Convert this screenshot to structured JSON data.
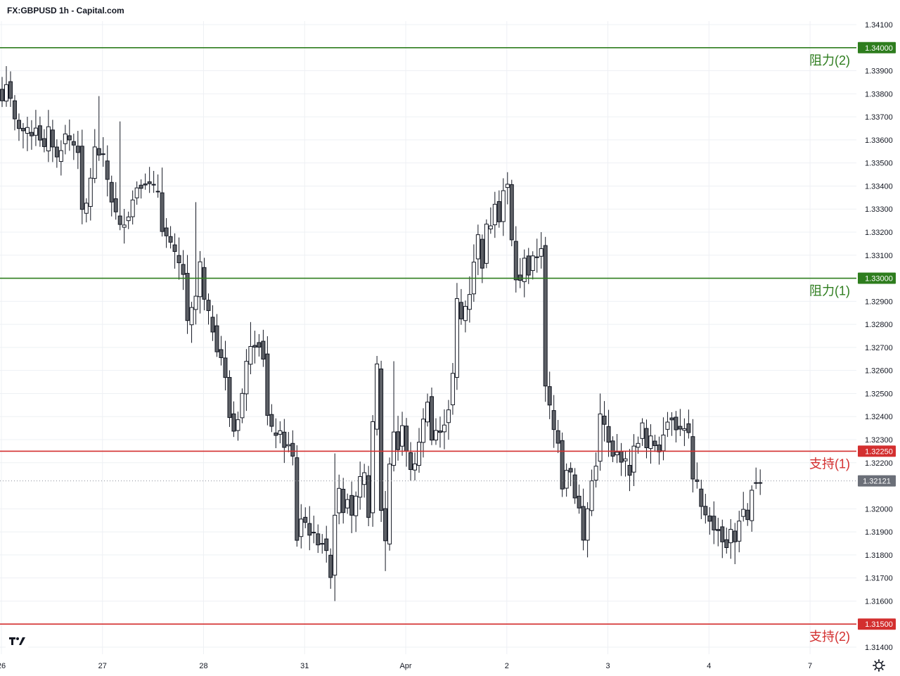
{
  "header": {
    "title": "FX:GBPUSD 1h - Capital.com"
  },
  "colors": {
    "resistance": "#2e7d1e",
    "support": "#d32f2f",
    "candle_up_fill": "#ffffff",
    "candle_down_fill": "#5d6066",
    "candle_stroke": "#131722",
    "grid": "#eef0f4",
    "current_tag": "#6b6f78"
  },
  "chart_data": {
    "type": "candlestick",
    "title": "FX:GBPUSD 1h - Capital.com",
    "ylim": [
      1.3135,
      1.3413
    ],
    "y_ticks": [
      "1.34100",
      "1.33900",
      "1.33800",
      "1.33700",
      "1.33600",
      "1.33500",
      "1.33400",
      "1.33300",
      "1.33200",
      "1.33100",
      "1.32900",
      "1.32800",
      "1.32700",
      "1.32600",
      "1.32500",
      "1.32400",
      "1.32300",
      "1.32200",
      "1.32000",
      "1.31900",
      "1.31800",
      "1.31700",
      "1.31600",
      "1.31400"
    ],
    "x_ticks": [
      {
        "label": "26",
        "index": 0
      },
      {
        "label": "27",
        "index": 24
      },
      {
        "label": "28",
        "index": 48
      },
      {
        "label": "31",
        "index": 72
      },
      {
        "label": "Apr",
        "index": 96
      },
      {
        "label": "2",
        "index": 120
      },
      {
        "label": "3",
        "index": 144
      },
      {
        "label": "4",
        "index": 168
      },
      {
        "label": "7",
        "index": 192
      }
    ],
    "grid": true,
    "levels": [
      {
        "name": "阻力(2)",
        "value": 1.34,
        "tag": "1.34000",
        "kind": "resistance"
      },
      {
        "name": "阻力(1)",
        "value": 1.33,
        "tag": "1.33000",
        "kind": "resistance"
      },
      {
        "name": "支持(1)",
        "value": 1.3225,
        "tag": "1.32250",
        "kind": "support"
      },
      {
        "name": "支持(2)",
        "value": 1.315,
        "tag": "1.31500",
        "kind": "support"
      }
    ],
    "current_price": {
      "value": 1.32121,
      "tag": "1.32121"
    },
    "close_anchors": [
      [
        0,
        1.3377
      ],
      [
        1,
        1.3385
      ],
      [
        3,
        1.3368
      ],
      [
        5,
        1.3364
      ],
      [
        7,
        1.3363
      ],
      [
        8,
        1.3366
      ],
      [
        10,
        1.3356
      ],
      [
        11,
        1.3364
      ],
      [
        13,
        1.3352
      ],
      [
        15,
        1.3362
      ],
      [
        18,
        1.3356
      ],
      [
        19,
        1.3328
      ],
      [
        20,
        1.3332
      ],
      [
        22,
        1.3356
      ],
      [
        24,
        1.3352
      ],
      [
        26,
        1.3334
      ],
      [
        28,
        1.3322
      ],
      [
        30,
        1.3328
      ],
      [
        32,
        1.334
      ],
      [
        34,
        1.3342
      ],
      [
        35,
        1.334
      ],
      [
        37,
        1.3338
      ],
      [
        38,
        1.3322
      ],
      [
        39,
        1.3318
      ],
      [
        41,
        1.331
      ],
      [
        43,
        1.3302
      ],
      [
        44,
        1.328
      ],
      [
        46,
        1.3292
      ],
      [
        47,
        1.3306
      ],
      [
        48,
        1.329
      ],
      [
        50,
        1.3278
      ],
      [
        51,
        1.327
      ],
      [
        52,
        1.3266
      ],
      [
        53,
        1.3256
      ],
      [
        54,
        1.324
      ],
      [
        55,
        1.3234
      ],
      [
        56,
        1.324
      ],
      [
        57,
        1.325
      ],
      [
        58,
        1.3263
      ],
      [
        59,
        1.3272
      ],
      [
        61,
        1.3272
      ],
      [
        62,
        1.3266
      ],
      [
        63,
        1.324
      ],
      [
        64,
        1.3234
      ],
      [
        66,
        1.3232
      ],
      [
        67,
        1.3228
      ],
      [
        68,
        1.3227
      ],
      [
        69,
        1.3222
      ],
      [
        70,
        1.3187
      ],
      [
        71,
        1.3196
      ],
      [
        72,
        1.3194
      ],
      [
        73,
        1.319
      ],
      [
        74,
        1.3188
      ],
      [
        75,
        1.3186
      ],
      [
        76,
        1.3186
      ],
      [
        77,
        1.318
      ],
      [
        78,
        1.3172
      ],
      [
        79,
        1.3198
      ],
      [
        80,
        1.321
      ],
      [
        81,
        1.32
      ],
      [
        82,
        1.3206
      ],
      [
        83,
        1.3198
      ],
      [
        84,
        1.3204
      ],
      [
        85,
        1.3212
      ],
      [
        86,
        1.3214
      ],
      [
        87,
        1.3198
      ],
      [
        88,
        1.3236
      ],
      [
        89,
        1.3262
      ],
      [
        90,
        1.32
      ],
      [
        91,
        1.3186
      ],
      [
        92,
        1.322
      ],
      [
        93,
        1.3234
      ],
      [
        94,
        1.3226
      ],
      [
        95,
        1.3236
      ],
      [
        96,
        1.3224
      ],
      [
        97,
        1.3218
      ],
      [
        98,
        1.3218
      ],
      [
        99,
        1.323
      ],
      [
        100,
        1.3238
      ],
      [
        101,
        1.3248
      ],
      [
        102,
        1.323
      ],
      [
        103,
        1.3234
      ],
      [
        104,
        1.3232
      ],
      [
        105,
        1.3238
      ],
      [
        106,
        1.3244
      ],
      [
        107,
        1.3258
      ],
      [
        108,
        1.329
      ],
      [
        109,
        1.3282
      ],
      [
        110,
        1.3288
      ],
      [
        111,
        1.3294
      ],
      [
        112,
        1.3308
      ],
      [
        113,
        1.3318
      ],
      [
        114,
        1.3306
      ],
      [
        115,
        1.3322
      ],
      [
        116,
        1.3324
      ],
      [
        117,
        1.3334
      ],
      [
        118,
        1.3326
      ],
      [
        119,
        1.3338
      ],
      [
        120,
        1.334
      ],
      [
        121,
        1.3316
      ],
      [
        122,
        1.33
      ],
      [
        123,
        1.3298
      ],
      [
        124,
        1.331
      ],
      [
        125,
        1.3302
      ],
      [
        126,
        1.3308
      ],
      [
        127,
        1.331
      ],
      [
        128,
        1.3314
      ],
      [
        129,
        1.3252
      ],
      [
        130,
        1.3244
      ],
      [
        131,
        1.3234
      ],
      [
        132,
        1.323
      ],
      [
        133,
        1.321
      ],
      [
        134,
        1.3218
      ],
      [
        135,
        1.3216
      ],
      [
        136,
        1.3206
      ],
      [
        137,
        1.32
      ],
      [
        138,
        1.3186
      ],
      [
        139,
        1.32
      ],
      [
        140,
        1.3212
      ],
      [
        141,
        1.322
      ],
      [
        142,
        1.324
      ],
      [
        143,
        1.3236
      ],
      [
        144,
        1.3228
      ],
      [
        145,
        1.3222
      ],
      [
        146,
        1.3224
      ],
      [
        147,
        1.3222
      ],
      [
        148,
        1.322
      ],
      [
        149,
        1.3216
      ],
      [
        150,
        1.3226
      ],
      [
        151,
        1.323
      ],
      [
        152,
        1.3236
      ],
      [
        153,
        1.3226
      ],
      [
        154,
        1.323
      ],
      [
        155,
        1.3228
      ],
      [
        156,
        1.3226
      ],
      [
        157,
        1.3234
      ],
      [
        158,
        1.3238
      ],
      [
        159,
        1.324
      ],
      [
        160,
        1.3236
      ],
      [
        161,
        1.3234
      ],
      [
        162,
        1.3236
      ],
      [
        163,
        1.3232
      ],
      [
        164,
        1.3212
      ],
      [
        165,
        1.321
      ],
      [
        166,
        1.32
      ],
      [
        167,
        1.3198
      ],
      [
        168,
        1.3196
      ],
      [
        169,
        1.319
      ],
      [
        170,
        1.3192
      ],
      [
        171,
        1.3186
      ],
      [
        172,
        1.3184
      ],
      [
        173,
        1.319
      ],
      [
        174,
        1.3186
      ],
      [
        175,
        1.3196
      ],
      [
        176,
        1.3198
      ],
      [
        177,
        1.3194
      ],
      [
        178,
        1.321
      ],
      [
        179,
        1.3212
      ],
      [
        180,
        1.3212
      ]
    ],
    "spikes": [
      {
        "index": 1,
        "high": 1.3392
      },
      {
        "index": 23,
        "high": 1.3379
      },
      {
        "index": 28,
        "high": 1.3368
      },
      {
        "index": 38,
        "high": 1.3348
      },
      {
        "index": 46,
        "high": 1.3333
      },
      {
        "index": 59,
        "high": 1.3281
      },
      {
        "index": 79,
        "high": 1.3224,
        "low": 1.316
      },
      {
        "index": 91,
        "low": 1.3173
      },
      {
        "index": 93,
        "high": 1.3264
      },
      {
        "index": 120,
        "high": 1.3346
      },
      {
        "index": 128,
        "high": 1.332
      },
      {
        "index": 138,
        "low": 1.3182
      },
      {
        "index": 142,
        "high": 1.325
      },
      {
        "index": 158,
        "high": 1.3242
      },
      {
        "index": 174,
        "low": 1.3176
      }
    ]
  }
}
